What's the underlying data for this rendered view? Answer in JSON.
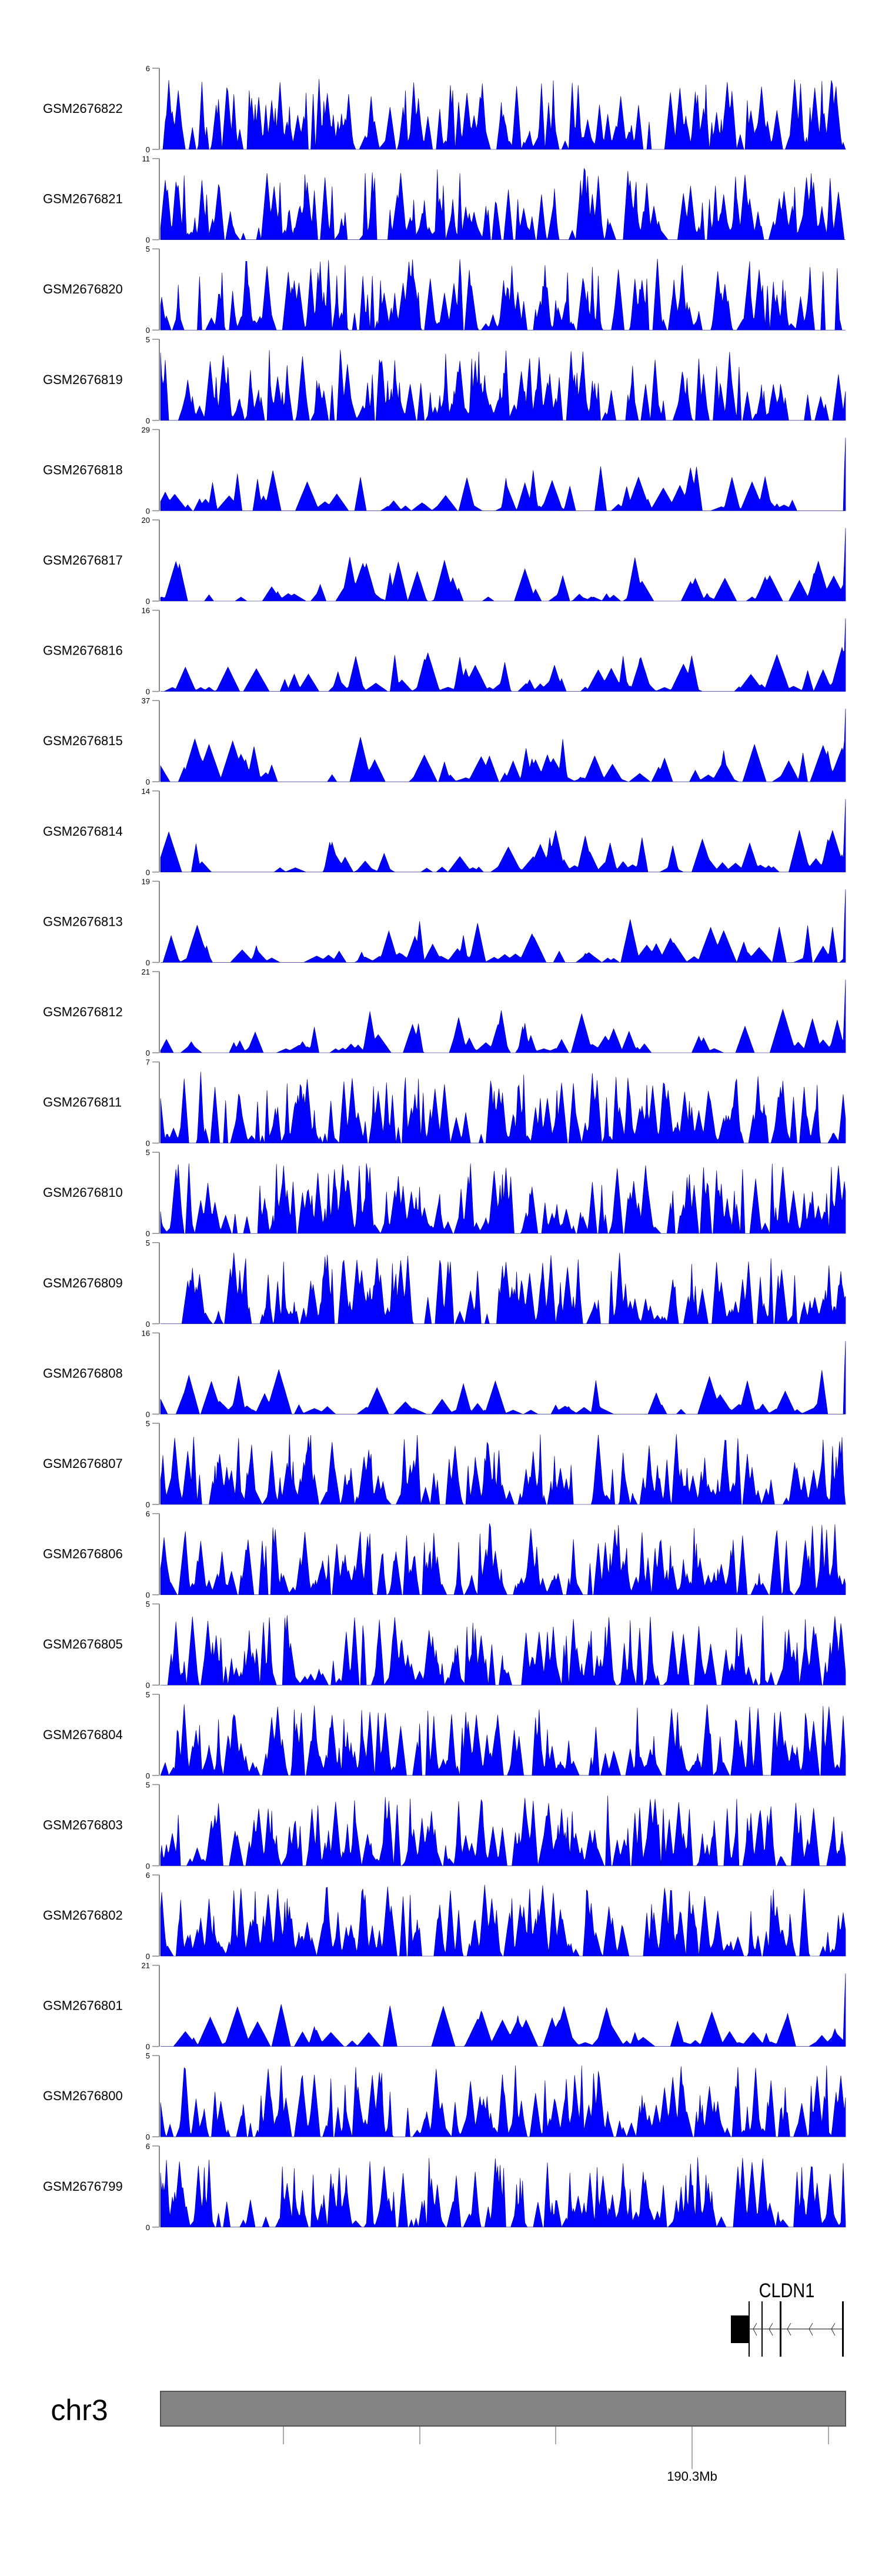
{
  "chart_data": {
    "type": "area",
    "title": "",
    "xlabel": "",
    "ylabel": "",
    "fill_color": "#0000FF",
    "outline_color": "#00008B",
    "y_min": 0,
    "tracks": [
      {
        "name": "GSM2676822",
        "ymax": 6,
        "ymin_label": "0",
        "ymax_label": "6"
      },
      {
        "name": "GSM2676821",
        "ymax": 11,
        "ymin_label": "0",
        "ymax_label": "11"
      },
      {
        "name": "GSM2676820",
        "ymax": 5,
        "ymin_label": "0",
        "ymax_label": "5"
      },
      {
        "name": "GSM2676819",
        "ymax": 5,
        "ymin_label": "0",
        "ymax_label": "5"
      },
      {
        "name": "GSM2676818",
        "ymax": 29,
        "ymin_label": "0",
        "ymax_label": "29"
      },
      {
        "name": "GSM2676817",
        "ymax": 20,
        "ymin_label": "0",
        "ymax_label": "20"
      },
      {
        "name": "GSM2676816",
        "ymax": 16,
        "ymin_label": "0",
        "ymax_label": "16"
      },
      {
        "name": "GSM2676815",
        "ymax": 37,
        "ymin_label": "0",
        "ymax_label": "37"
      },
      {
        "name": "GSM2676814",
        "ymax": 14,
        "ymin_label": "0",
        "ymax_label": "14"
      },
      {
        "name": "GSM2676813",
        "ymax": 19,
        "ymin_label": "0",
        "ymax_label": "19"
      },
      {
        "name": "GSM2676812",
        "ymax": 21,
        "ymin_label": "0",
        "ymax_label": "21"
      },
      {
        "name": "GSM2676811",
        "ymax": 7,
        "ymin_label": "0",
        "ymax_label": "7"
      },
      {
        "name": "GSM2676810",
        "ymax": 5,
        "ymin_label": "0",
        "ymax_label": "5"
      },
      {
        "name": "GSM2676809",
        "ymax": 5,
        "ymin_label": "0",
        "ymax_label": "5"
      },
      {
        "name": "GSM2676808",
        "ymax": 16,
        "ymin_label": "0",
        "ymax_label": "16"
      },
      {
        "name": "GSM2676807",
        "ymax": 5,
        "ymin_label": "0",
        "ymax_label": "5"
      },
      {
        "name": "GSM2676806",
        "ymax": 6,
        "ymin_label": "0",
        "ymax_label": "6"
      },
      {
        "name": "GSM2676805",
        "ymax": 5,
        "ymin_label": "0",
        "ymax_label": "5"
      },
      {
        "name": "GSM2676804",
        "ymax": 5,
        "ymin_label": "0",
        "ymax_label": "5"
      },
      {
        "name": "GSM2676803",
        "ymax": 5,
        "ymin_label": "0",
        "ymax_label": "5"
      },
      {
        "name": "GSM2676802",
        "ymax": 6,
        "ymin_label": "0",
        "ymax_label": "6"
      },
      {
        "name": "GSM2676801",
        "ymax": 21,
        "ymin_label": "0",
        "ymax_label": "21"
      },
      {
        "name": "GSM2676800",
        "ymax": 5,
        "ymin_label": "0",
        "ymax_label": "5"
      },
      {
        "name": "GSM2676799",
        "ymax": 6,
        "ymin_label": "0",
        "ymax_label": "6"
      }
    ],
    "gene": {
      "name": "CLDN1",
      "strand": "-"
    },
    "ideogram": {
      "chromosome": "chr3",
      "tick_label": "190.3Mb",
      "bar_color": "#808080"
    }
  }
}
